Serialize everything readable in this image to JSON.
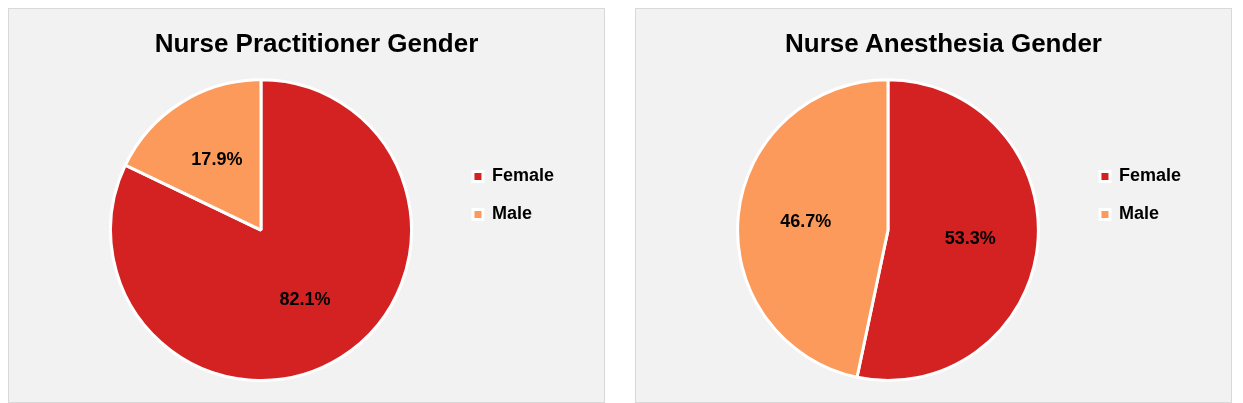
{
  "chart_data": [
    {
      "type": "pie",
      "title": "Nurse Practitioner Gender",
      "categories": [
        "Female",
        "Male"
      ],
      "values": [
        82.1,
        17.9
      ],
      "colors": [
        "#d42222",
        "#fb9a5a"
      ],
      "value_labels": [
        "82.1%",
        "17.9%"
      ],
      "legend": "right"
    },
    {
      "type": "pie",
      "title": "Nurse Anesthesia Gender",
      "categories": [
        "Female",
        "Male"
      ],
      "values": [
        53.3,
        46.7
      ],
      "colors": [
        "#d42222",
        "#fb9a5a"
      ],
      "value_labels": [
        "53.3%",
        "46.7%"
      ],
      "legend": "right"
    }
  ]
}
